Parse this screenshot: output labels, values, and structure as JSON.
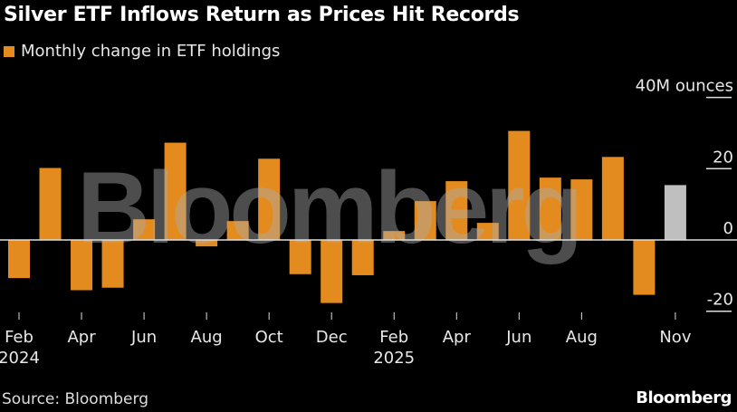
{
  "chart_data": {
    "type": "bar",
    "title": "Silver ETF Inflows Return as Prices Hit Records",
    "legend": [
      {
        "label": "Monthly change in ETF holdings",
        "color": "#e38b1f"
      }
    ],
    "legend_placement": "top-left",
    "ylabel": "40M ounces",
    "ylim": [
      -20,
      40
    ],
    "yticks": [
      {
        "value": 40,
        "label": "40M ounces"
      },
      {
        "value": 20,
        "label": "20"
      },
      {
        "value": 0,
        "label": "0"
      },
      {
        "value": -20,
        "label": "-20"
      }
    ],
    "categories": [
      "Feb 2024",
      "Mar 2024",
      "Apr 2024",
      "May 2024",
      "Jun 2024",
      "Jul 2024",
      "Aug 2024",
      "Sep 2024",
      "Oct 2024",
      "Nov 2024",
      "Dec 2024",
      "Jan 2025",
      "Feb 2025",
      "Mar 2025",
      "Apr 2025",
      "May 2025",
      "Jun 2025",
      "Jul 2025",
      "Aug 2025",
      "Sep 2025",
      "Oct 2025",
      "Nov 2025"
    ],
    "values": [
      -10.7,
      20.2,
      -14.1,
      -13.4,
      5.8,
      27.3,
      -1.8,
      5.3,
      22.8,
      -9.6,
      -17.7,
      -9.9,
      2.5,
      10.9,
      16.5,
      4.8,
      30.6,
      17.5,
      17.0,
      23.3,
      -15.4,
      15.4
    ],
    "bar_colors": {
      "default": "#e38b1f",
      "partial": "#bfbfbf"
    },
    "partial_index": 21,
    "xticks": [
      {
        "index": 0,
        "label": "Feb",
        "sub": "2024"
      },
      {
        "index": 2,
        "label": "Apr",
        "sub": ""
      },
      {
        "index": 4,
        "label": "Jun",
        "sub": ""
      },
      {
        "index": 6,
        "label": "Aug",
        "sub": ""
      },
      {
        "index": 8,
        "label": "Oct",
        "sub": ""
      },
      {
        "index": 10,
        "label": "Dec",
        "sub": ""
      },
      {
        "index": 12,
        "label": "Feb",
        "sub": "2025"
      },
      {
        "index": 14,
        "label": "Apr",
        "sub": ""
      },
      {
        "index": 16,
        "label": "Jun",
        "sub": ""
      },
      {
        "index": 18,
        "label": "Aug",
        "sub": ""
      },
      {
        "index": 21,
        "label": "Nov",
        "sub": ""
      }
    ],
    "grid": false
  },
  "source": "Source: Bloomberg",
  "brand": "Bloomberg",
  "watermark": "Bloomberg"
}
